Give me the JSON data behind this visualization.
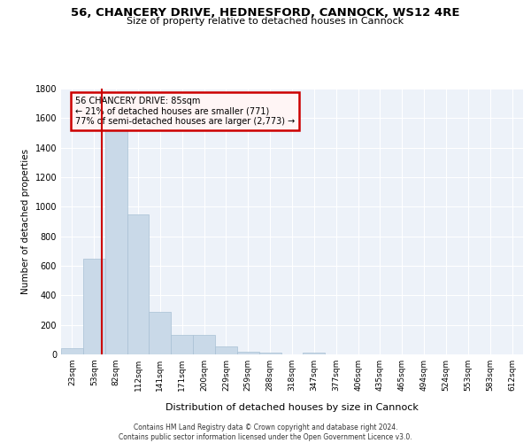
{
  "title": "56, CHANCERY DRIVE, HEDNESFORD, CANNOCK, WS12 4RE",
  "subtitle": "Size of property relative to detached houses in Cannock",
  "xlabel": "Distribution of detached houses by size in Cannock",
  "ylabel": "Number of detached properties",
  "bin_labels": [
    "23sqm",
    "53sqm",
    "82sqm",
    "112sqm",
    "141sqm",
    "171sqm",
    "200sqm",
    "229sqm",
    "259sqm",
    "288sqm",
    "318sqm",
    "347sqm",
    "377sqm",
    "406sqm",
    "435sqm",
    "465sqm",
    "494sqm",
    "524sqm",
    "553sqm",
    "583sqm",
    "612sqm"
  ],
  "bar_values": [
    40,
    650,
    1650,
    950,
    290,
    130,
    130,
    55,
    20,
    15,
    0,
    15,
    0,
    0,
    0,
    0,
    0,
    0,
    0,
    0,
    0
  ],
  "bar_color": "#c9d9e8",
  "bar_edgecolor": "#a8c0d4",
  "bar_linewidth": 0.5,
  "red_line_x": 1.35,
  "annotation_title": "56 CHANCERY DRIVE: 85sqm",
  "annotation_line1": "← 21% of detached houses are smaller (771)",
  "annotation_line2": "77% of semi-detached houses are larger (2,773) →",
  "annotation_box_facecolor": "#fff5f5",
  "annotation_border_color": "#cc0000",
  "vline_color": "#cc0000",
  "ylim": [
    0,
    1800
  ],
  "yticks": [
    0,
    200,
    400,
    600,
    800,
    1000,
    1200,
    1400,
    1600,
    1800
  ],
  "bg_color": "#edf2f9",
  "footer_line1": "Contains HM Land Registry data © Crown copyright and database right 2024.",
  "footer_line2": "Contains public sector information licensed under the Open Government Licence v3.0."
}
